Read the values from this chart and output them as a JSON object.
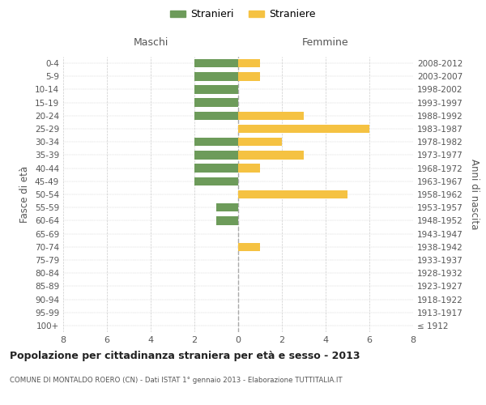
{
  "age_groups": [
    "100+",
    "95-99",
    "90-94",
    "85-89",
    "80-84",
    "75-79",
    "70-74",
    "65-69",
    "60-64",
    "55-59",
    "50-54",
    "45-49",
    "40-44",
    "35-39",
    "30-34",
    "25-29",
    "20-24",
    "15-19",
    "10-14",
    "5-9",
    "0-4"
  ],
  "birth_years": [
    "≤ 1912",
    "1913-1917",
    "1918-1922",
    "1923-1927",
    "1928-1932",
    "1933-1937",
    "1938-1942",
    "1943-1947",
    "1948-1952",
    "1953-1957",
    "1958-1962",
    "1963-1967",
    "1968-1972",
    "1973-1977",
    "1978-1982",
    "1983-1987",
    "1988-1992",
    "1993-1997",
    "1998-2002",
    "2003-2007",
    "2008-2012"
  ],
  "stranieri": [
    0,
    0,
    0,
    0,
    0,
    0,
    0,
    0,
    1,
    1,
    0,
    2,
    2,
    2,
    2,
    0,
    2,
    2,
    2,
    2,
    2
  ],
  "straniere": [
    0,
    0,
    0,
    0,
    0,
    0,
    1,
    0,
    0,
    0,
    5,
    0,
    1,
    3,
    2,
    6,
    3,
    0,
    0,
    1,
    1
  ],
  "color_stranieri": "#6d9b5a",
  "color_straniere": "#f5c242",
  "xlim": 8,
  "title": "Popolazione per cittadinanza straniera per età e sesso - 2013",
  "subtitle": "COMUNE DI MONTALDO ROERO (CN) - Dati ISTAT 1° gennaio 2013 - Elaborazione TUTTITALIA.IT",
  "label_maschi": "Maschi",
  "label_femmine": "Femmine",
  "label_stranieri": "Stranieri",
  "label_straniere": "Straniere",
  "ylabel_left": "Fasce di età",
  "ylabel_right": "Anni di nascita",
  "bg_color": "#ffffff",
  "grid_color": "#cccccc",
  "bar_height": 0.65
}
